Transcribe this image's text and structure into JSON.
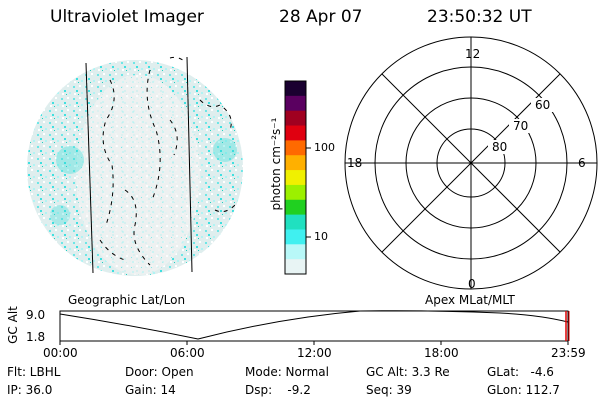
{
  "header": {
    "instrument": "Ultraviolet Imager",
    "date": "28 Apr 07",
    "time": "23:50:32 UT"
  },
  "colorbar": {
    "label": "photon cm⁻²s⁻¹",
    "ticks": [
      "100",
      "10"
    ],
    "colors": [
      "#1a0030",
      "#5a0060",
      "#a00020",
      "#e00010",
      "#ff6a00",
      "#ffb000",
      "#f0f000",
      "#9cf000",
      "#20d020",
      "#20e0c0",
      "#40f0f0",
      "#b8f8f8",
      "#e8f4f4"
    ]
  },
  "image_panel": {
    "caption": "Geographic Lat/Lon"
  },
  "polar_panel": {
    "caption": "Apex MLat/MLT",
    "mlt_labels": [
      "12",
      "18",
      "6",
      "0"
    ],
    "lat_labels": [
      "60",
      "70",
      "80"
    ]
  },
  "altitude_plot": {
    "ylabel": "GC Alt",
    "yticks": [
      "9.0",
      "1.8"
    ],
    "xticks": [
      "00:00",
      "06:00",
      "12:00",
      "18:00",
      "23:59"
    ]
  },
  "footer": {
    "flt": "Flt: LBHL",
    "ip": "IP: 36.0",
    "door": "Door: Open",
    "gain": "Gain: 14",
    "mode": "Mode: Normal",
    "dsp": "Dsp:    -9.2",
    "gcalt": "GC Alt: 3.3 Re",
    "seq": "Seq: 39",
    "glat": "GLat:   -4.6",
    "glon": "GLon: 112.7"
  },
  "accent": {
    "cyan": "#40e8e0",
    "red": "#e00000"
  }
}
